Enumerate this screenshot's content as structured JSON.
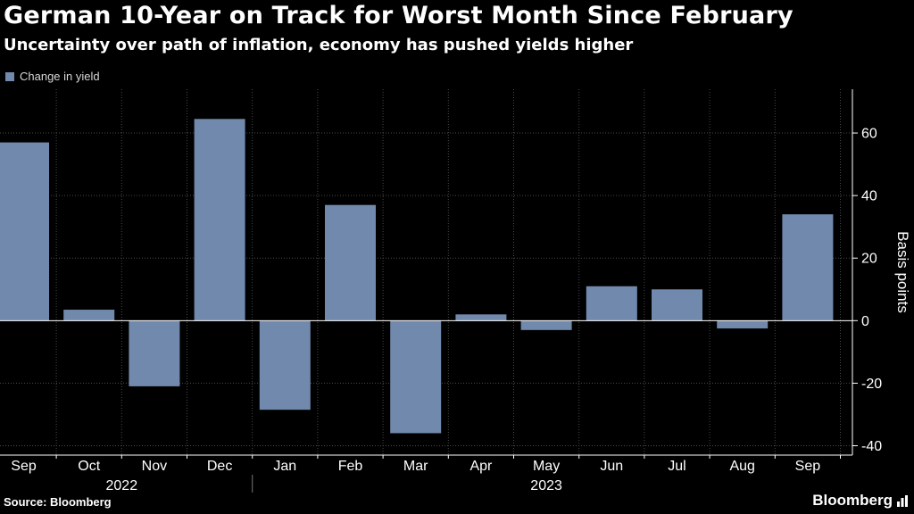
{
  "header": {
    "title": "German 10-Year on Track for Worst Month Since February",
    "subtitle": "Uncertainty over path of inflation, economy has pushed yields higher"
  },
  "legend": {
    "label": "Change in yield",
    "color": "#7189ac"
  },
  "footer": {
    "source": "Source: Bloomberg",
    "brand": "Bloomberg"
  },
  "chart_data": {
    "type": "bar",
    "title": "German 10-Year on Track for Worst Month Since February",
    "subtitle": "Uncertainty over path of inflation, economy has pushed yields higher",
    "categories": [
      "Sep",
      "Oct",
      "Nov",
      "Dec",
      "Jan",
      "Feb",
      "Mar",
      "Apr",
      "May",
      "Jun",
      "Jul",
      "Aug",
      "Sep"
    ],
    "year_groups": [
      {
        "label": "2022",
        "start": 0,
        "end": 3
      },
      {
        "label": "2023",
        "start": 4,
        "end": 12
      }
    ],
    "series": [
      {
        "name": "Change in yield",
        "color": "#7189ac",
        "values": [
          57,
          3.5,
          -21,
          64.5,
          -28.5,
          37,
          -36,
          2,
          -3,
          11,
          10,
          -2.5,
          34
        ]
      }
    ],
    "ylabel": "Basis points",
    "yticks": [
      -40,
      -20,
      0,
      20,
      40,
      60
    ],
    "ylim": [
      -43,
      74
    ],
    "grid": true,
    "axis_side": "right",
    "legend_position": "top-left"
  }
}
